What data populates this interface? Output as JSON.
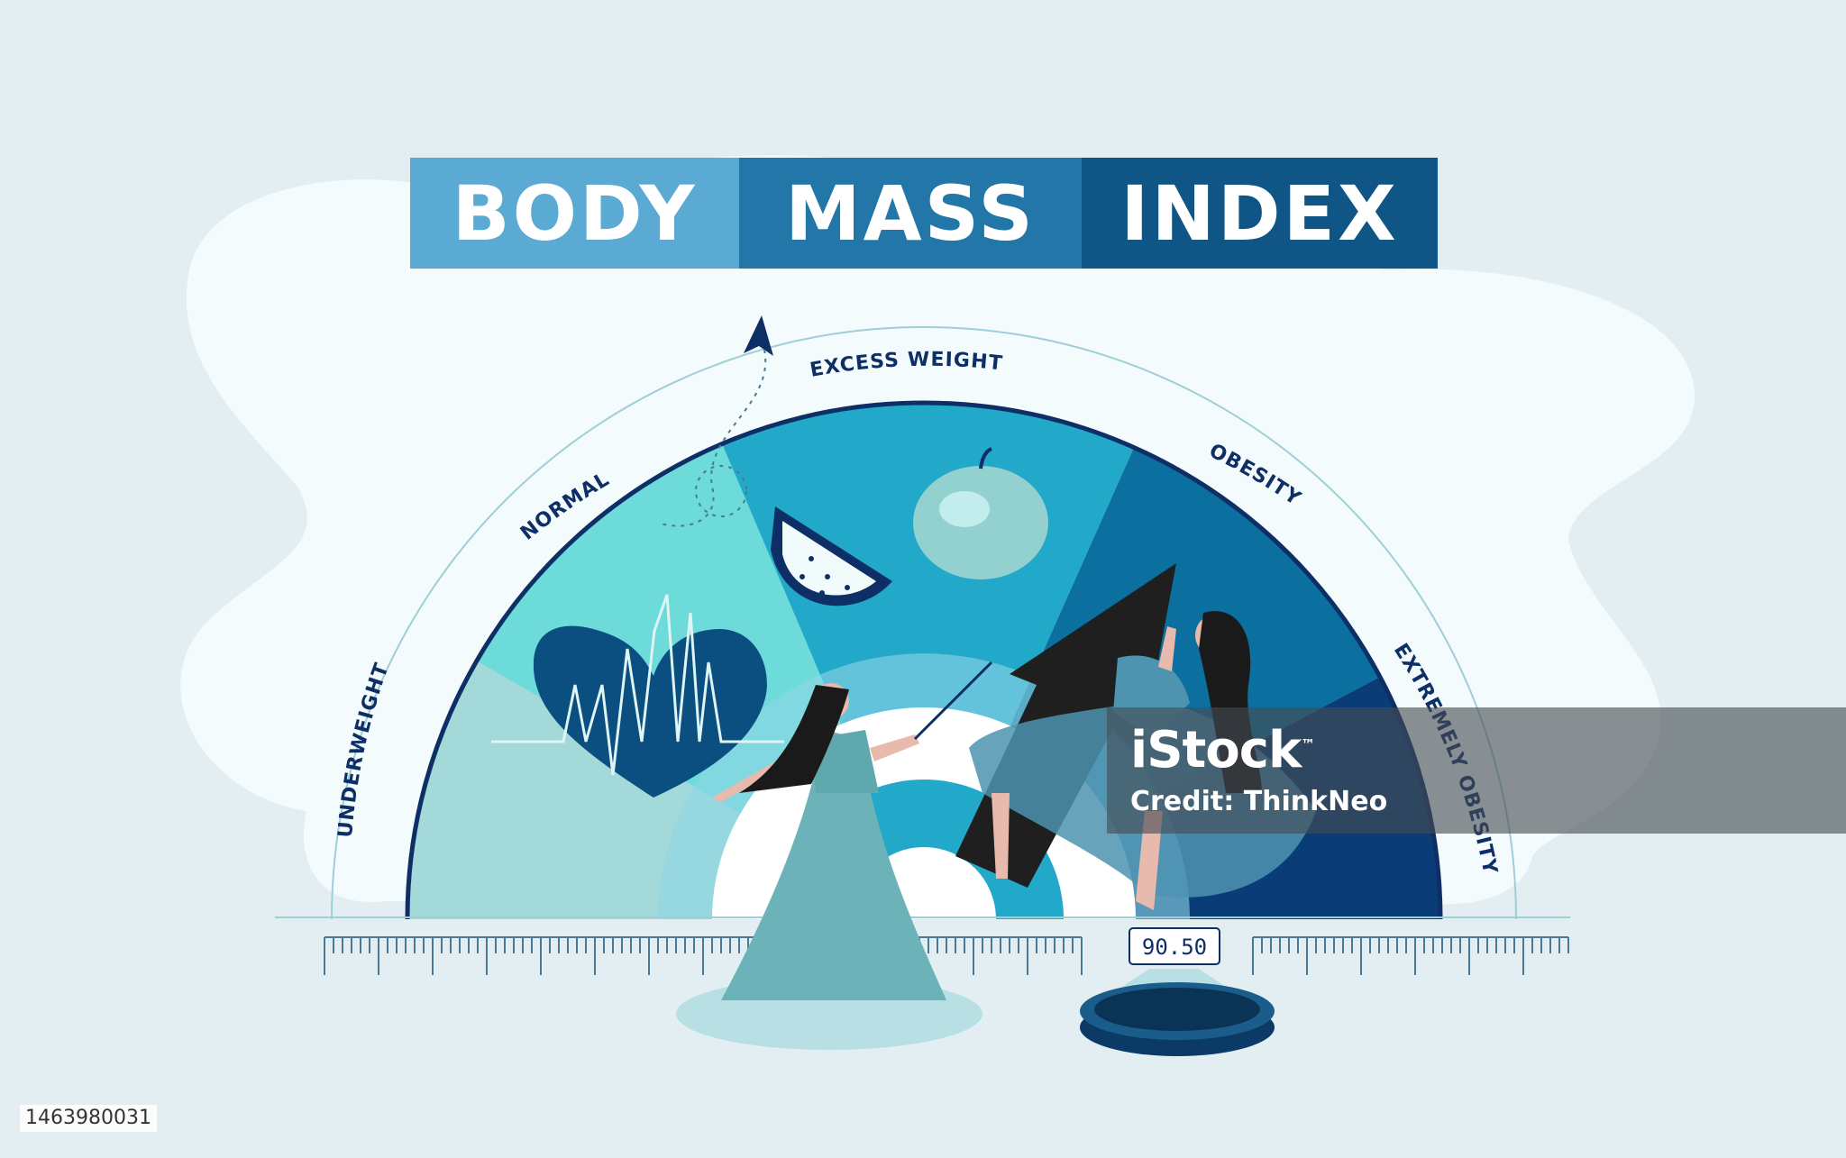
{
  "title": {
    "words": [
      "BODY",
      "MASS",
      "INDEX"
    ],
    "colors": [
      "#5aaad3",
      "#2377a8",
      "#0f5585"
    ]
  },
  "categories": [
    {
      "label": "UNDERWEIGHT",
      "color": "#a3d9d8"
    },
    {
      "label": "NORMAL",
      "color": "#6cdbd9"
    },
    {
      "label": "EXCESS WEIGHT",
      "color": "#22a9c9"
    },
    {
      "label": "OBESITY",
      "color": "#0b6f9f"
    },
    {
      "label": "EXTREMELY OBESITY",
      "color": "#0a3d78"
    }
  ],
  "scale_display": {
    "value": "90.50"
  },
  "icons": {
    "heart": "heart-pulse-icon",
    "apple": "apple-icon",
    "watermelon": "watermelon-slice-icon",
    "arrow": "up-arrow-icon",
    "paper_plane": "paper-plane-icon",
    "scale": "weighing-scale-icon"
  },
  "watermark": {
    "logo": "iStock",
    "trademark": "™",
    "credit": "Credit: ThinkNeo"
  },
  "stock_id": "1463980031",
  "colors": {
    "background": "#e3eef2",
    "cloud": "#f4fbfc",
    "label": "#0e2f66",
    "ruler": "#4a7a93"
  }
}
